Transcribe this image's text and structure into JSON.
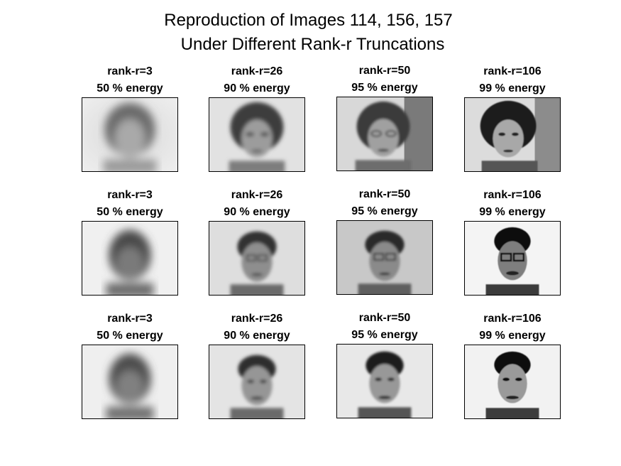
{
  "figure": {
    "title_line1": "Reproduction of Images 114, 156, 157",
    "title_line2": "Under Different Rank-r Truncations",
    "rows": [
      {
        "image_number": 114,
        "panels": [
          {
            "rank_label": "rank-r=3",
            "energy_label": "50 % energy"
          },
          {
            "rank_label": "rank-r=26",
            "energy_label": "90 % energy"
          },
          {
            "rank_label": "rank-r=50",
            "energy_label": "95 % energy"
          },
          {
            "rank_label": "rank-r=106",
            "energy_label": "99 % energy"
          }
        ]
      },
      {
        "image_number": 156,
        "panels": [
          {
            "rank_label": "rank-r=3",
            "energy_label": "50 % energy"
          },
          {
            "rank_label": "rank-r=26",
            "energy_label": "90 % energy"
          },
          {
            "rank_label": "rank-r=50",
            "energy_label": "95 % energy"
          },
          {
            "rank_label": "rank-r=106",
            "energy_label": "99 % energy"
          }
        ]
      },
      {
        "image_number": 157,
        "panels": [
          {
            "rank_label": "rank-r=3",
            "energy_label": "50 % energy"
          },
          {
            "rank_label": "rank-r=26",
            "energy_label": "90 % energy"
          },
          {
            "rank_label": "rank-r=50",
            "energy_label": "95 % energy"
          },
          {
            "rank_label": "rank-r=106",
            "energy_label": "99 % energy"
          }
        ]
      }
    ]
  }
}
